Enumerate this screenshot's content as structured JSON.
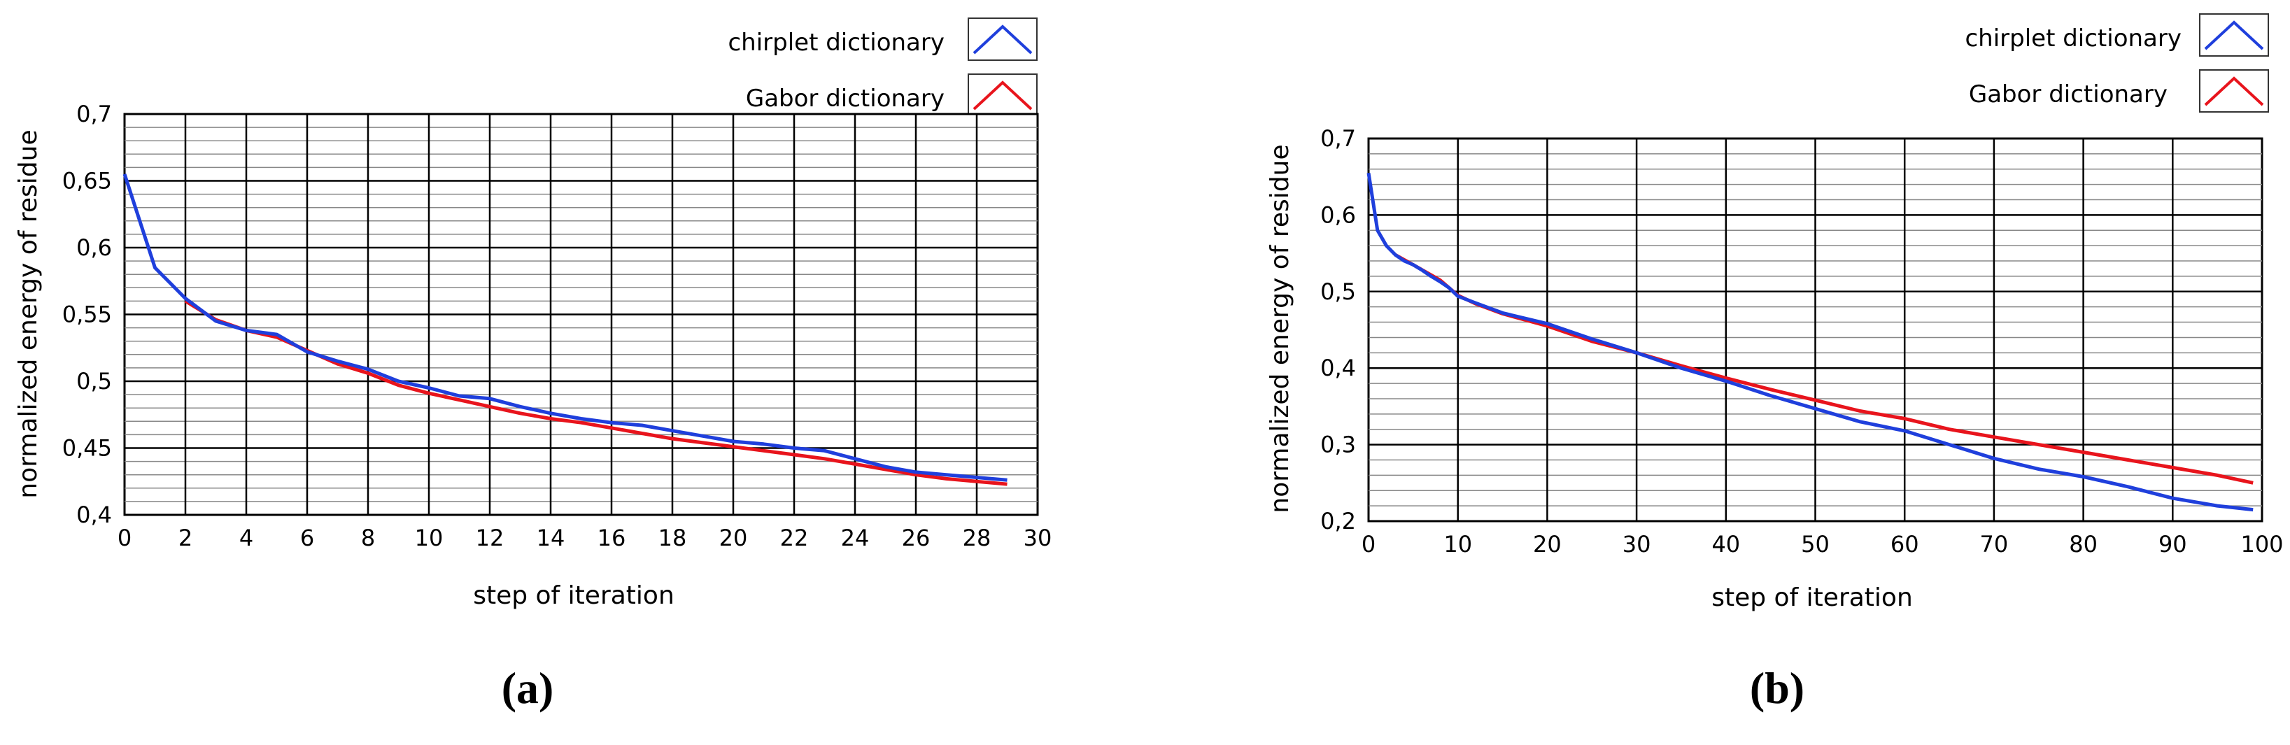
{
  "chart_data": [
    {
      "type": "line",
      "panel_label": "(a)",
      "xlabel": "step of iteration",
      "ylabel": "normalized energy of residue",
      "xlim": [
        0,
        30
      ],
      "ylim": [
        0.4,
        0.7
      ],
      "xticks": [
        "0",
        "2",
        "4",
        "6",
        "8",
        "10",
        "12",
        "14",
        "16",
        "18",
        "20",
        "22",
        "24",
        "26",
        "28",
        "30"
      ],
      "yticks": [
        "0,4",
        "0,45",
        "0,5",
        "0,55",
        "0,6",
        "0,65",
        "0,7"
      ],
      "grid": true,
      "legend_position": "top-right",
      "series": [
        {
          "name": "chirplet dictionary",
          "color": "#1f3fdc",
          "x": [
            0,
            1,
            2,
            3,
            4,
            5,
            6,
            7,
            8,
            9,
            10,
            11,
            12,
            13,
            14,
            15,
            16,
            17,
            18,
            19,
            20,
            21,
            22,
            23,
            24,
            25,
            26,
            27,
            28,
            29
          ],
          "values": [
            0.655,
            0.585,
            0.562,
            0.545,
            0.538,
            0.535,
            0.522,
            0.515,
            0.509,
            0.5,
            0.495,
            0.489,
            0.487,
            0.481,
            0.476,
            0.472,
            0.469,
            0.467,
            0.463,
            0.459,
            0.455,
            0.453,
            0.45,
            0.448,
            0.442,
            0.436,
            0.432,
            0.43,
            0.428,
            0.426
          ]
        },
        {
          "name": "Gabor dictionary",
          "color": "#e8141c",
          "x": [
            2,
            3,
            4,
            5,
            6,
            7,
            8,
            9,
            10,
            11,
            12,
            13,
            14,
            15,
            16,
            17,
            18,
            19,
            20,
            21,
            22,
            23,
            24,
            25,
            26,
            27,
            28,
            29
          ],
          "values": [
            0.56,
            0.546,
            0.538,
            0.533,
            0.523,
            0.513,
            0.506,
            0.497,
            0.491,
            0.486,
            0.481,
            0.476,
            0.472,
            0.469,
            0.465,
            0.461,
            0.457,
            0.454,
            0.451,
            0.448,
            0.445,
            0.442,
            0.438,
            0.434,
            0.43,
            0.427,
            0.425,
            0.423
          ]
        }
      ]
    },
    {
      "type": "line",
      "panel_label": "(b)",
      "xlabel": "step of iteration",
      "ylabel": "normalized energy of residue",
      "xlim": [
        0,
        100
      ],
      "ylim": [
        0.2,
        0.7
      ],
      "xticks": [
        "0",
        "10",
        "20",
        "30",
        "40",
        "50",
        "60",
        "70",
        "80",
        "90",
        "100"
      ],
      "yticks": [
        "0,2",
        "0,3",
        "0,4",
        "0,5",
        "0,6",
        "0,7"
      ],
      "grid": true,
      "legend_position": "top-right",
      "series": [
        {
          "name": "chirplet dictionary",
          "color": "#1f3fdc",
          "x": [
            0,
            1,
            2,
            3,
            4,
            5,
            6,
            7,
            8,
            9,
            10,
            12,
            15,
            20,
            25,
            30,
            35,
            40,
            45,
            50,
            55,
            60,
            65,
            70,
            75,
            80,
            85,
            90,
            95,
            99
          ],
          "values": [
            0.655,
            0.58,
            0.56,
            0.548,
            0.54,
            0.535,
            0.528,
            0.52,
            0.513,
            0.505,
            0.494,
            0.485,
            0.472,
            0.458,
            0.438,
            0.42,
            0.4,
            0.383,
            0.364,
            0.347,
            0.33,
            0.318,
            0.3,
            0.282,
            0.268,
            0.258,
            0.245,
            0.23,
            0.22,
            0.215
          ]
        },
        {
          "name": "Gabor dictionary",
          "color": "#e8141c",
          "x": [
            3,
            5,
            8,
            10,
            12,
            15,
            20,
            25,
            30,
            35,
            40,
            45,
            50,
            55,
            60,
            65,
            70,
            75,
            80,
            85,
            90,
            95,
            99
          ],
          "values": [
            0.548,
            0.535,
            0.515,
            0.495,
            0.484,
            0.471,
            0.455,
            0.435,
            0.42,
            0.403,
            0.387,
            0.372,
            0.358,
            0.344,
            0.334,
            0.32,
            0.31,
            0.3,
            0.29,
            0.28,
            0.27,
            0.26,
            0.25
          ]
        }
      ]
    }
  ]
}
